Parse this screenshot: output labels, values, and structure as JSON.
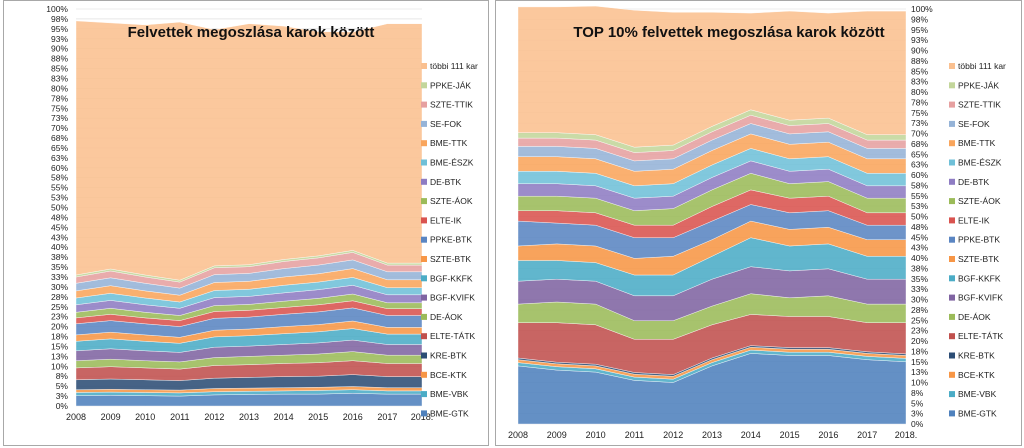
{
  "chart_data": [
    {
      "type": "area",
      "title": "Felvettek megoszlása karok között",
      "x": [
        "2008",
        "2009",
        "2010",
        "2011",
        "2012",
        "2013",
        "2014",
        "2015",
        "2016",
        "2017",
        "2018."
      ],
      "ylim": [
        0,
        100
      ],
      "yticks": [
        "0%",
        "3%",
        "5%",
        "8%",
        "10%",
        "13%",
        "15%",
        "18%",
        "20%",
        "23%",
        "25%",
        "28%",
        "30%",
        "33%",
        "35%",
        "38%",
        "40%",
        "43%",
        "45%",
        "48%",
        "50%",
        "53%",
        "55%",
        "58%",
        "60%",
        "63%",
        "65%",
        "68%",
        "70%",
        "73%",
        "75%",
        "78%",
        "80%",
        "83%",
        "85%",
        "88%",
        "90%",
        "93%",
        "95%",
        "98%",
        "100%"
      ],
      "legend_position": "right",
      "grid": true,
      "series": [
        {
          "name": "BME-GTK",
          "color": "#4f81bd",
          "values": [
            2.6,
            2.7,
            2.6,
            2.5,
            2.8,
            2.9,
            3.0,
            3.0,
            3.2,
            3.0,
            3.0
          ]
        },
        {
          "name": "BME-VBK",
          "color": "#4bacc6",
          "values": [
            0.8,
            0.8,
            0.8,
            0.8,
            0.8,
            0.8,
            0.8,
            0.9,
            0.9,
            0.8,
            0.8
          ]
        },
        {
          "name": "BCE-KTK",
          "color": "#f79646",
          "values": [
            0.7,
            0.7,
            0.7,
            0.7,
            0.8,
            0.8,
            0.8,
            0.8,
            0.8,
            0.8,
            0.8
          ]
        },
        {
          "name": "KRE-BTK",
          "color": "#2c4d75",
          "values": [
            2.5,
            2.6,
            2.5,
            2.4,
            2.6,
            2.7,
            2.8,
            2.8,
            3.0,
            2.8,
            2.8
          ]
        },
        {
          "name": "ELTE-TÁTK",
          "color": "#c0504d",
          "values": [
            3.0,
            3.1,
            3.0,
            2.9,
            3.2,
            3.2,
            3.3,
            3.4,
            3.5,
            3.3,
            3.3
          ]
        },
        {
          "name": "DE-ÁOK",
          "color": "#9bbb59",
          "values": [
            1.8,
            1.9,
            1.8,
            1.8,
            2.0,
            2.1,
            2.1,
            2.2,
            2.3,
            2.1,
            2.1
          ]
        },
        {
          "name": "BGF-KVIFK",
          "color": "#8064a2",
          "values": [
            2.5,
            2.6,
            2.5,
            2.4,
            2.6,
            2.6,
            2.7,
            2.8,
            2.9,
            2.7,
            2.7
          ]
        },
        {
          "name": "BGF-KKFK",
          "color": "#4bacc6",
          "values": [
            2.4,
            2.5,
            2.4,
            2.3,
            2.6,
            2.6,
            2.7,
            2.8,
            2.9,
            2.6,
            2.6
          ]
        },
        {
          "name": "SZTE-BTK",
          "color": "#f79646",
          "values": [
            1.6,
            1.7,
            1.6,
            1.5,
            1.7,
            1.7,
            1.8,
            1.8,
            1.9,
            1.7,
            1.7
          ]
        },
        {
          "name": "PPKE-BTK",
          "color": "#5a85c2",
          "values": [
            2.8,
            2.9,
            2.8,
            2.7,
            3.0,
            3.0,
            3.1,
            3.2,
            3.3,
            3.0,
            3.0
          ]
        },
        {
          "name": "ELTE-IK",
          "color": "#d9534f",
          "values": [
            1.5,
            1.6,
            1.5,
            1.5,
            1.7,
            1.7,
            1.7,
            1.8,
            1.8,
            1.7,
            1.7
          ]
        },
        {
          "name": "SZTE-ÁOK",
          "color": "#9bbb59",
          "values": [
            1.4,
            1.5,
            1.4,
            1.3,
            1.5,
            1.5,
            1.6,
            1.6,
            1.7,
            1.5,
            1.5
          ]
        },
        {
          "name": "DE-BTK",
          "color": "#8e7cc3",
          "values": [
            1.9,
            2.0,
            1.9,
            1.8,
            2.0,
            2.0,
            2.1,
            2.2,
            2.2,
            2.0,
            2.0
          ]
        },
        {
          "name": "BME-ÉSZK",
          "color": "#6fc0d8",
          "values": [
            1.7,
            1.8,
            1.7,
            1.6,
            1.8,
            1.8,
            1.9,
            1.9,
            2.0,
            1.8,
            1.8
          ]
        },
        {
          "name": "BME-TTK",
          "color": "#f9a55c",
          "values": [
            1.8,
            1.9,
            1.8,
            1.7,
            2.0,
            2.0,
            2.1,
            2.1,
            2.2,
            2.0,
            2.0
          ]
        },
        {
          "name": "SE-FOK",
          "color": "#95b3d7",
          "values": [
            1.9,
            2.0,
            1.9,
            1.8,
            2.0,
            2.0,
            2.1,
            2.2,
            2.2,
            2.0,
            2.0
          ]
        },
        {
          "name": "SZTE-TTIK",
          "color": "#e6a0a0",
          "values": [
            1.6,
            1.7,
            1.6,
            1.5,
            1.7,
            1.7,
            1.8,
            1.8,
            1.9,
            1.7,
            1.7
          ]
        },
        {
          "name": "PPKE-JÁK",
          "color": "#c3d69b",
          "values": [
            0.5,
            0.5,
            0.5,
            0.5,
            0.5,
            0.5,
            0.5,
            0.5,
            0.5,
            0.5,
            0.5
          ]
        },
        {
          "name": "többi 111 kar",
          "color": "#fac090",
          "values": [
            64.0,
            62.0,
            63.0,
            65.0,
            59.5,
            60.7,
            58.8,
            56.5,
            55.0,
            60.3,
            60.3
          ]
        }
      ]
    },
    {
      "type": "area",
      "title": "TOP 10% felvettek megoszlása karok között",
      "x": [
        "2008",
        "2009",
        "2010",
        "2011",
        "2012",
        "2013",
        "2014",
        "2015",
        "2016",
        "2017",
        "2018."
      ],
      "ylim": [
        0,
        100
      ],
      "yticks": [
        "0%",
        "3%",
        "5%",
        "8%",
        "10%",
        "13%",
        "15%",
        "18%",
        "20%",
        "23%",
        "25%",
        "28%",
        "30%",
        "33%",
        "35%",
        "38%",
        "40%",
        "43%",
        "45%",
        "48%",
        "50%",
        "53%",
        "55%",
        "58%",
        "60%",
        "63%",
        "65%",
        "68%",
        "70%",
        "73%",
        "75%",
        "78%",
        "80%",
        "83%",
        "85%",
        "88%",
        "90%",
        "93%",
        "95%",
        "98%",
        "100%"
      ],
      "legend_position": "right",
      "grid": true,
      "series": [
        {
          "name": "BME-GTK",
          "color": "#4f81bd",
          "values": [
            14.0,
            13.0,
            12.5,
            10.5,
            10.0,
            14.0,
            17.0,
            16.5,
            16.5,
            15.5,
            15.0
          ]
        },
        {
          "name": "BME-VBK",
          "color": "#4bacc6",
          "values": [
            0.8,
            0.8,
            0.8,
            0.8,
            0.8,
            0.8,
            0.8,
            0.8,
            0.8,
            0.8,
            0.8
          ]
        },
        {
          "name": "BCE-KTK",
          "color": "#f79646",
          "values": [
            0.7,
            0.7,
            0.7,
            0.7,
            0.7,
            0.7,
            0.7,
            0.7,
            0.7,
            0.7,
            0.7
          ]
        },
        {
          "name": "KRE-BTK",
          "color": "#2c4d75",
          "values": [
            0.4,
            0.4,
            0.4,
            0.4,
            0.4,
            0.4,
            0.4,
            0.4,
            0.4,
            0.4,
            0.4
          ]
        },
        {
          "name": "ELTE-TÁTK",
          "color": "#c0504d",
          "values": [
            8.5,
            9.5,
            9.5,
            8.0,
            8.5,
            8.0,
            7.5,
            7.5,
            7.5,
            7.0,
            7.5
          ]
        },
        {
          "name": "DE-ÁOK",
          "color": "#9bbb59",
          "values": [
            4.5,
            5.0,
            5.0,
            4.5,
            4.5,
            4.5,
            5.0,
            4.5,
            5.0,
            4.5,
            4.5
          ]
        },
        {
          "name": "BGF-KVIFK",
          "color": "#8064a2",
          "values": [
            5.5,
            5.5,
            5.5,
            6.0,
            6.0,
            6.5,
            6.5,
            6.5,
            6.5,
            6.0,
            6.0
          ]
        },
        {
          "name": "BGF-KKFK",
          "color": "#4bacc6",
          "values": [
            5.0,
            4.5,
            4.5,
            5.0,
            5.0,
            5.5,
            7.0,
            6.0,
            6.0,
            5.5,
            5.5
          ]
        },
        {
          "name": "SZTE-BTK",
          "color": "#f79646",
          "values": [
            3.5,
            4.0,
            4.0,
            4.0,
            4.5,
            4.0,
            4.0,
            4.0,
            4.0,
            4.0,
            4.0
          ]
        },
        {
          "name": "PPKE-BTK",
          "color": "#5a85c2",
          "values": [
            6.0,
            5.0,
            5.0,
            5.0,
            4.5,
            4.5,
            4.0,
            4.0,
            4.0,
            3.5,
            3.5
          ]
        },
        {
          "name": "ELTE-IK",
          "color": "#d9534f",
          "values": [
            2.5,
            3.0,
            3.0,
            3.0,
            3.0,
            3.5,
            3.5,
            3.5,
            3.5,
            3.0,
            3.0
          ]
        },
        {
          "name": "SZTE-ÁOK",
          "color": "#9bbb59",
          "values": [
            3.5,
            3.5,
            3.5,
            3.5,
            4.0,
            4.0,
            4.0,
            3.5,
            3.5,
            3.5,
            3.5
          ]
        },
        {
          "name": "DE-BTK",
          "color": "#8e7cc3",
          "values": [
            3.0,
            3.0,
            3.0,
            3.0,
            3.0,
            3.0,
            3.0,
            3.0,
            3.0,
            3.0,
            3.0
          ]
        },
        {
          "name": "BME-ÉSZK",
          "color": "#6fc0d8",
          "values": [
            3.0,
            3.0,
            3.0,
            3.0,
            3.0,
            3.0,
            3.0,
            3.0,
            3.0,
            3.0,
            3.0
          ]
        },
        {
          "name": "BME-TTK",
          "color": "#f9a55c",
          "values": [
            3.5,
            3.5,
            3.5,
            3.5,
            3.5,
            3.5,
            3.5,
            3.5,
            3.5,
            3.5,
            3.5
          ]
        },
        {
          "name": "SE-FOK",
          "color": "#95b3d7",
          "values": [
            2.5,
            2.5,
            2.5,
            2.5,
            2.5,
            2.5,
            2.5,
            2.5,
            2.5,
            2.5,
            2.5
          ]
        },
        {
          "name": "SZTE-TTIK",
          "color": "#e6a0a0",
          "values": [
            2.0,
            2.0,
            2.0,
            2.0,
            2.0,
            2.0,
            2.0,
            2.0,
            2.0,
            2.0,
            2.0
          ]
        },
        {
          "name": "PPKE-JÁK",
          "color": "#c3d69b",
          "values": [
            1.3,
            1.3,
            1.3,
            1.3,
            1.3,
            1.3,
            1.3,
            1.3,
            1.3,
            1.3,
            1.3
          ]
        },
        {
          "name": "többi 111 kar",
          "color": "#fac090",
          "values": [
            30.3,
            30.3,
            31.0,
            33.0,
            32.0,
            27.5,
            23.3,
            26.3,
            25.3,
            29.8,
            29.8
          ]
        }
      ]
    }
  ]
}
